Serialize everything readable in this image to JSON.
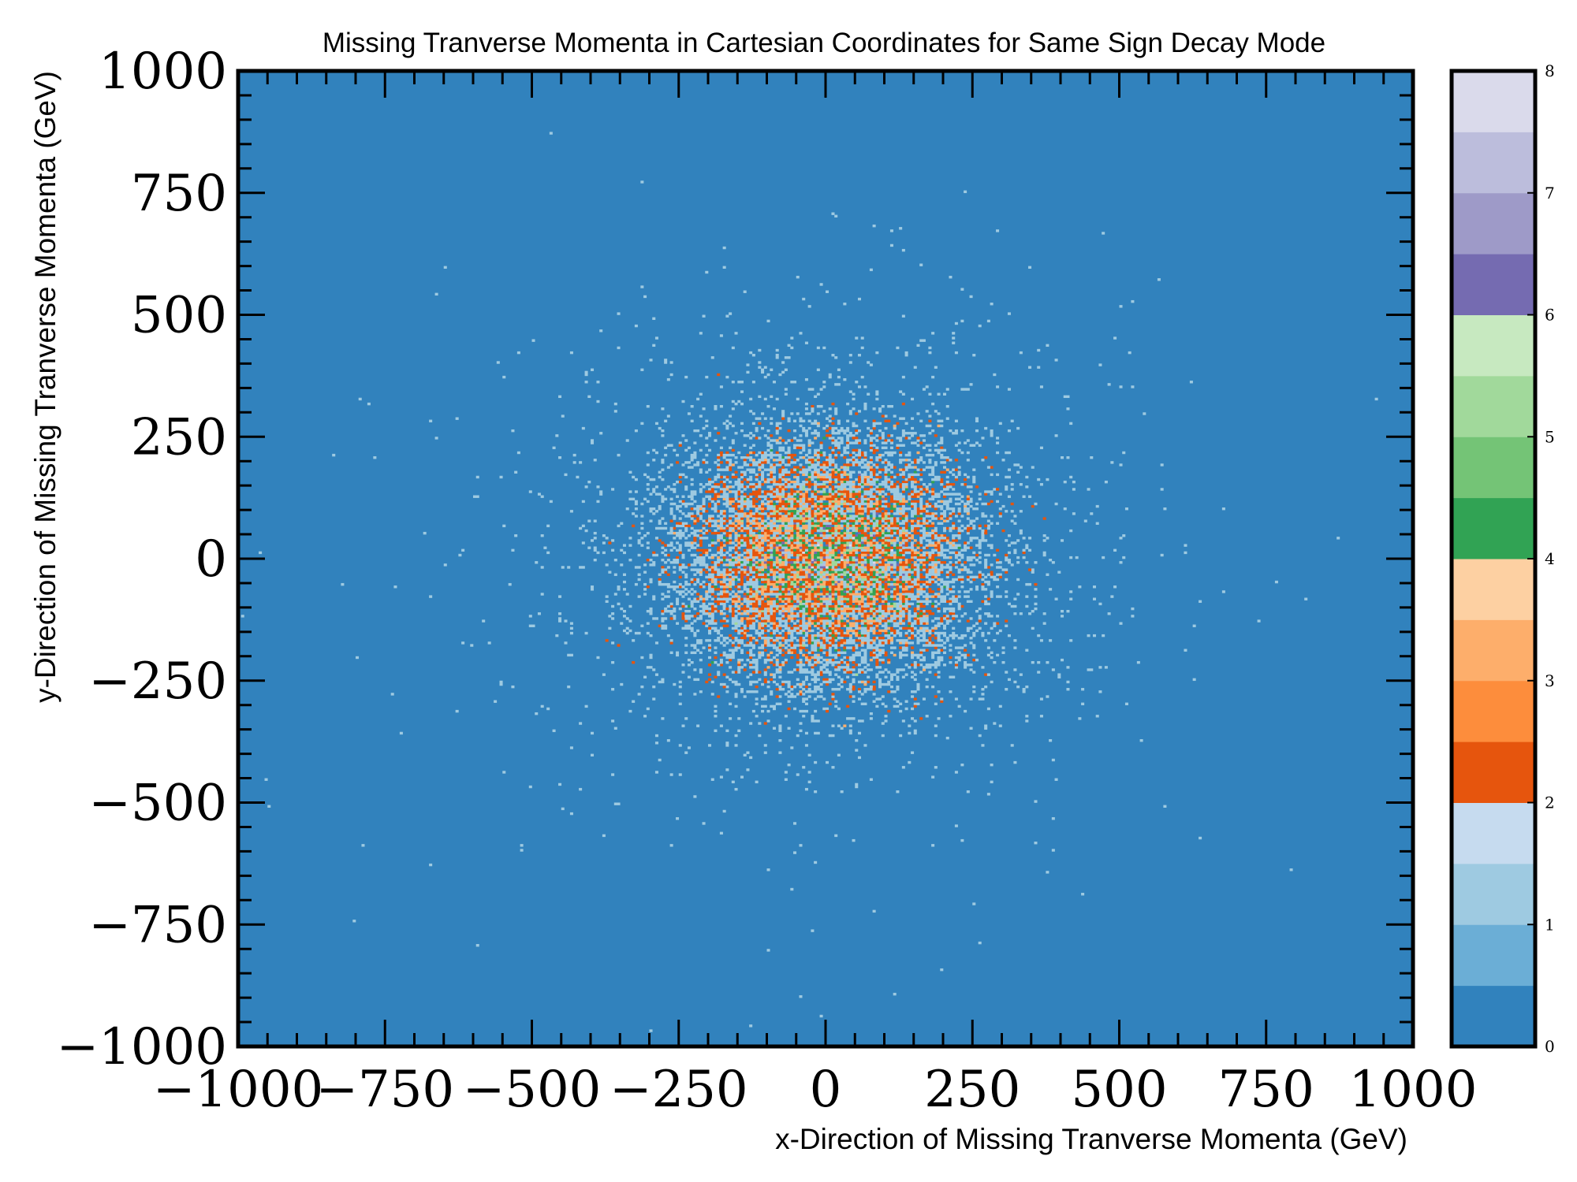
{
  "chart_data": {
    "type": "heatmap",
    "title": "Missing Tranverse Momenta in Cartesian Coordinates for Same Sign Decay Mode",
    "xlabel": "x-Direction of Missing Tranverse Momenta (GeV)",
    "ylabel": "y-Direction of Missing Tranverse Momenta (GeV)",
    "xlim": [
      -1000,
      1000
    ],
    "ylim": [
      -1000,
      1000
    ],
    "x_ticks": [
      -1000,
      -750,
      -500,
      -250,
      0,
      250,
      500,
      750,
      1000
    ],
    "y_ticks": [
      -1000,
      -750,
      -500,
      -250,
      0,
      250,
      500,
      750,
      1000
    ],
    "x_tick_labels": [
      "−1000",
      "−750",
      "−500",
      "−250",
      "0",
      "250",
      "500",
      "750",
      "1000"
    ],
    "y_tick_labels": [
      "−1000",
      "−750",
      "−500",
      "−250",
      "0",
      "250",
      "500",
      "750",
      "1000"
    ],
    "bins": 400,
    "distribution": {
      "shape": "approximately 2D Gaussian centered at origin",
      "center": [
        0,
        0
      ],
      "sigma_x_gev": 120,
      "sigma_y_gev": 120,
      "typical_counts": {
        "outer_sparse": 1,
        "core": 2
      }
    },
    "colorbar": {
      "min": 0,
      "max": 8,
      "tick_values": [
        0,
        1,
        2,
        3,
        4,
        5,
        6,
        7,
        8
      ],
      "tick_labels": [
        "0",
        "1",
        "2",
        "3",
        "4",
        "5",
        "6",
        "7",
        "8"
      ],
      "colormap": "tab20c",
      "levels": 16,
      "colors": [
        "#3182bd",
        "#6baed6",
        "#9ecae1",
        "#c6dbef",
        "#e6550d",
        "#fd8d3c",
        "#fdae6b",
        "#fdd0a2",
        "#31a354",
        "#74c476",
        "#a1d99b",
        "#c7e9c0",
        "#756bb1",
        "#9e9ac8",
        "#bcbddc",
        "#dadaeb",
        "#636363",
        "#969696",
        "#bdbdbd",
        "#d9d9d9"
      ]
    },
    "grid": false,
    "legend": "none"
  }
}
